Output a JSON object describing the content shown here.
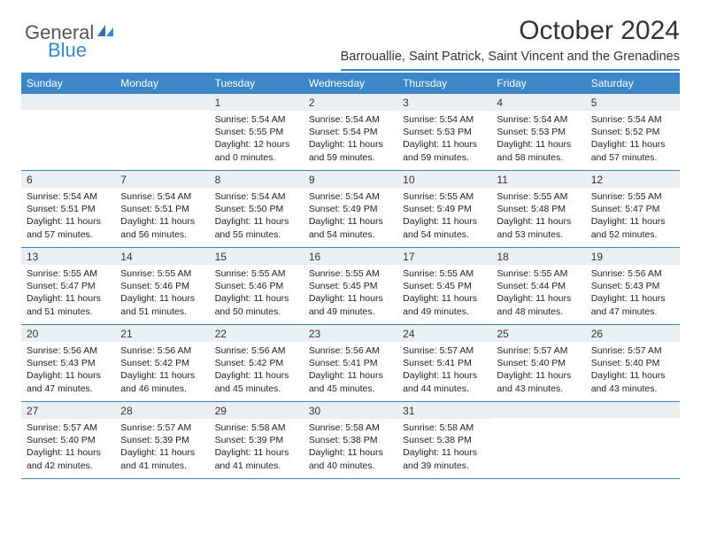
{
  "brand": {
    "general": "General",
    "blue": "Blue"
  },
  "title": "October 2024",
  "location": "Barrouallie, Saint Patrick, Saint Vincent and the Grenadines",
  "colors": {
    "accent": "#3b87c8",
    "header_bg": "#3b87c8",
    "daynum_bg": "#eceff1"
  },
  "day_headers": [
    "Sunday",
    "Monday",
    "Tuesday",
    "Wednesday",
    "Thursday",
    "Friday",
    "Saturday"
  ],
  "weeks": [
    [
      {
        "n": "",
        "lines": []
      },
      {
        "n": "",
        "lines": []
      },
      {
        "n": "1",
        "lines": [
          "Sunrise: 5:54 AM",
          "Sunset: 5:55 PM",
          "Daylight: 12 hours",
          "and 0 minutes."
        ]
      },
      {
        "n": "2",
        "lines": [
          "Sunrise: 5:54 AM",
          "Sunset: 5:54 PM",
          "Daylight: 11 hours",
          "and 59 minutes."
        ]
      },
      {
        "n": "3",
        "lines": [
          "Sunrise: 5:54 AM",
          "Sunset: 5:53 PM",
          "Daylight: 11 hours",
          "and 59 minutes."
        ]
      },
      {
        "n": "4",
        "lines": [
          "Sunrise: 5:54 AM",
          "Sunset: 5:53 PM",
          "Daylight: 11 hours",
          "and 58 minutes."
        ]
      },
      {
        "n": "5",
        "lines": [
          "Sunrise: 5:54 AM",
          "Sunset: 5:52 PM",
          "Daylight: 11 hours",
          "and 57 minutes."
        ]
      }
    ],
    [
      {
        "n": "6",
        "lines": [
          "Sunrise: 5:54 AM",
          "Sunset: 5:51 PM",
          "Daylight: 11 hours",
          "and 57 minutes."
        ]
      },
      {
        "n": "7",
        "lines": [
          "Sunrise: 5:54 AM",
          "Sunset: 5:51 PM",
          "Daylight: 11 hours",
          "and 56 minutes."
        ]
      },
      {
        "n": "8",
        "lines": [
          "Sunrise: 5:54 AM",
          "Sunset: 5:50 PM",
          "Daylight: 11 hours",
          "and 55 minutes."
        ]
      },
      {
        "n": "9",
        "lines": [
          "Sunrise: 5:54 AM",
          "Sunset: 5:49 PM",
          "Daylight: 11 hours",
          "and 54 minutes."
        ]
      },
      {
        "n": "10",
        "lines": [
          "Sunrise: 5:55 AM",
          "Sunset: 5:49 PM",
          "Daylight: 11 hours",
          "and 54 minutes."
        ]
      },
      {
        "n": "11",
        "lines": [
          "Sunrise: 5:55 AM",
          "Sunset: 5:48 PM",
          "Daylight: 11 hours",
          "and 53 minutes."
        ]
      },
      {
        "n": "12",
        "lines": [
          "Sunrise: 5:55 AM",
          "Sunset: 5:47 PM",
          "Daylight: 11 hours",
          "and 52 minutes."
        ]
      }
    ],
    [
      {
        "n": "13",
        "lines": [
          "Sunrise: 5:55 AM",
          "Sunset: 5:47 PM",
          "Daylight: 11 hours",
          "and 51 minutes."
        ]
      },
      {
        "n": "14",
        "lines": [
          "Sunrise: 5:55 AM",
          "Sunset: 5:46 PM",
          "Daylight: 11 hours",
          "and 51 minutes."
        ]
      },
      {
        "n": "15",
        "lines": [
          "Sunrise: 5:55 AM",
          "Sunset: 5:46 PM",
          "Daylight: 11 hours",
          "and 50 minutes."
        ]
      },
      {
        "n": "16",
        "lines": [
          "Sunrise: 5:55 AM",
          "Sunset: 5:45 PM",
          "Daylight: 11 hours",
          "and 49 minutes."
        ]
      },
      {
        "n": "17",
        "lines": [
          "Sunrise: 5:55 AM",
          "Sunset: 5:45 PM",
          "Daylight: 11 hours",
          "and 49 minutes."
        ]
      },
      {
        "n": "18",
        "lines": [
          "Sunrise: 5:55 AM",
          "Sunset: 5:44 PM",
          "Daylight: 11 hours",
          "and 48 minutes."
        ]
      },
      {
        "n": "19",
        "lines": [
          "Sunrise: 5:56 AM",
          "Sunset: 5:43 PM",
          "Daylight: 11 hours",
          "and 47 minutes."
        ]
      }
    ],
    [
      {
        "n": "20",
        "lines": [
          "Sunrise: 5:56 AM",
          "Sunset: 5:43 PM",
          "Daylight: 11 hours",
          "and 47 minutes."
        ]
      },
      {
        "n": "21",
        "lines": [
          "Sunrise: 5:56 AM",
          "Sunset: 5:42 PM",
          "Daylight: 11 hours",
          "and 46 minutes."
        ]
      },
      {
        "n": "22",
        "lines": [
          "Sunrise: 5:56 AM",
          "Sunset: 5:42 PM",
          "Daylight: 11 hours",
          "and 45 minutes."
        ]
      },
      {
        "n": "23",
        "lines": [
          "Sunrise: 5:56 AM",
          "Sunset: 5:41 PM",
          "Daylight: 11 hours",
          "and 45 minutes."
        ]
      },
      {
        "n": "24",
        "lines": [
          "Sunrise: 5:57 AM",
          "Sunset: 5:41 PM",
          "Daylight: 11 hours",
          "and 44 minutes."
        ]
      },
      {
        "n": "25",
        "lines": [
          "Sunrise: 5:57 AM",
          "Sunset: 5:40 PM",
          "Daylight: 11 hours",
          "and 43 minutes."
        ]
      },
      {
        "n": "26",
        "lines": [
          "Sunrise: 5:57 AM",
          "Sunset: 5:40 PM",
          "Daylight: 11 hours",
          "and 43 minutes."
        ]
      }
    ],
    [
      {
        "n": "27",
        "lines": [
          "Sunrise: 5:57 AM",
          "Sunset: 5:40 PM",
          "Daylight: 11 hours",
          "and 42 minutes."
        ]
      },
      {
        "n": "28",
        "lines": [
          "Sunrise: 5:57 AM",
          "Sunset: 5:39 PM",
          "Daylight: 11 hours",
          "and 41 minutes."
        ]
      },
      {
        "n": "29",
        "lines": [
          "Sunrise: 5:58 AM",
          "Sunset: 5:39 PM",
          "Daylight: 11 hours",
          "and 41 minutes."
        ]
      },
      {
        "n": "30",
        "lines": [
          "Sunrise: 5:58 AM",
          "Sunset: 5:38 PM",
          "Daylight: 11 hours",
          "and 40 minutes."
        ]
      },
      {
        "n": "31",
        "lines": [
          "Sunrise: 5:58 AM",
          "Sunset: 5:38 PM",
          "Daylight: 11 hours",
          "and 39 minutes."
        ]
      },
      {
        "n": "",
        "lines": []
      },
      {
        "n": "",
        "lines": []
      }
    ]
  ]
}
